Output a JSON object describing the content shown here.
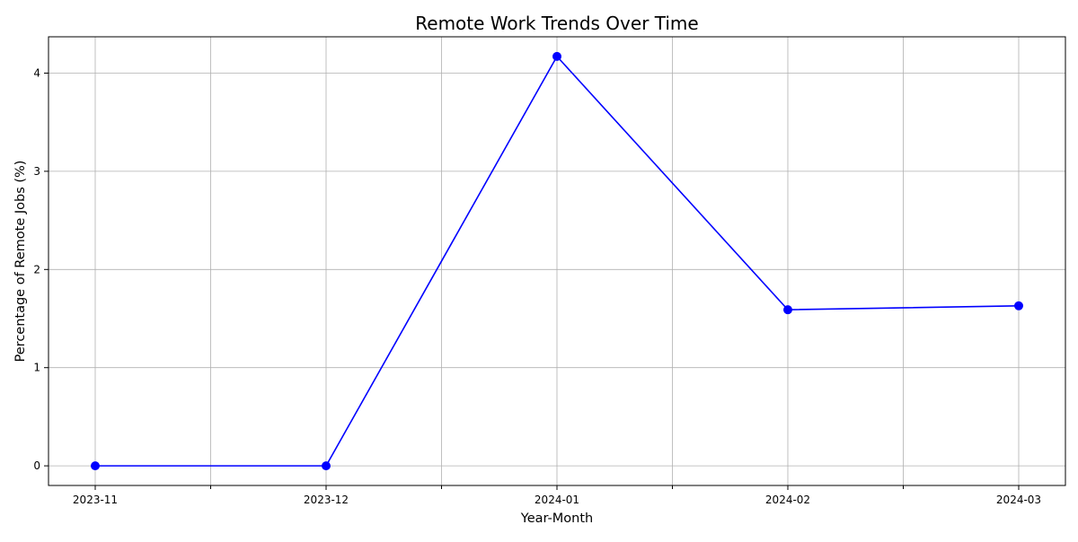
{
  "chart_data": {
    "type": "line",
    "title": "Remote Work Trends Over Time",
    "xlabel": "Year-Month",
    "ylabel": "Percentage of Remote Jobs (%)",
    "categories": [
      "2023-11",
      "2023-12",
      "2024-01",
      "2024-02",
      "2024-03"
    ],
    "values": [
      0,
      0,
      4.17,
      1.59,
      1.63
    ],
    "ylim": [
      -0.2,
      4.37
    ],
    "yticks": [
      0,
      1,
      2,
      3,
      4
    ],
    "grid": true,
    "line_color": "#0000ff",
    "marker_color": "#0000ff",
    "marker": "circle",
    "axes_color": "#000000",
    "grid_color": "#b0b0b0"
  }
}
